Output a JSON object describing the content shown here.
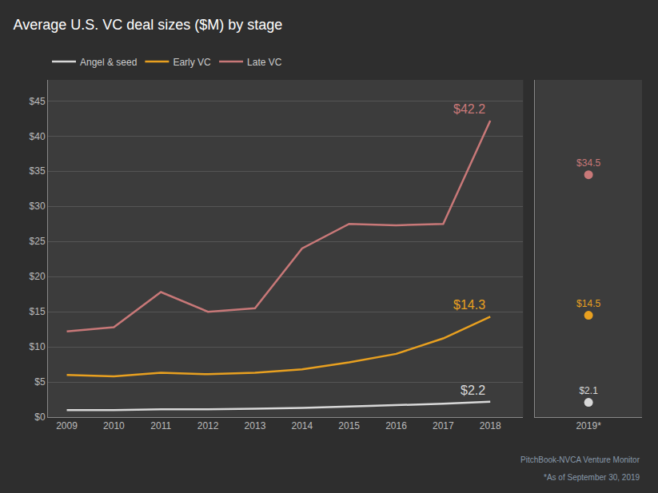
{
  "chart_data": [
    {
      "type": "line",
      "title": "Average U.S. VC deal sizes ($M) by stage",
      "x": [
        2009,
        2010,
        2011,
        2012,
        2013,
        2014,
        2015,
        2016,
        2017,
        2018
      ],
      "series": [
        {
          "name": "Angel & seed",
          "color": "#d8d8d8",
          "values": [
            1.0,
            1.0,
            1.1,
            1.1,
            1.2,
            1.3,
            1.5,
            1.7,
            1.9,
            2.2
          ]
        },
        {
          "name": "Early VC",
          "color": "#e8a020",
          "values": [
            6.0,
            5.8,
            6.3,
            6.1,
            6.3,
            6.8,
            7.8,
            9.0,
            11.2,
            14.3
          ]
        },
        {
          "name": "Late VC",
          "color": "#c87878",
          "values": [
            12.2,
            12.8,
            17.8,
            15.0,
            15.5,
            24.0,
            27.5,
            27.3,
            27.5,
            42.2
          ]
        }
      ],
      "xlim": [
        2008.6,
        2018.7
      ],
      "xticks": [
        2009,
        2010,
        2011,
        2012,
        2013,
        2014,
        2015,
        2016,
        2017,
        2018
      ],
      "ylim": [
        0,
        48
      ],
      "yticks": [
        {
          "value": 0,
          "label": "$0"
        },
        {
          "value": 5,
          "label": "$5"
        },
        {
          "value": 10,
          "label": "$10"
        },
        {
          "value": 15,
          "label": "$15"
        },
        {
          "value": 20,
          "label": "$20"
        },
        {
          "value": 25,
          "label": "$25"
        },
        {
          "value": 30,
          "label": "$30"
        },
        {
          "value": 35,
          "label": "$35"
        },
        {
          "value": 40,
          "label": "$40"
        },
        {
          "value": 45,
          "label": "$45"
        }
      ],
      "grid": true,
      "legend": "top left",
      "annotations": [
        {
          "text": "$42.2",
          "x": 2018,
          "y": 42.2,
          "color": "#c87878"
        },
        {
          "text": "$14.3",
          "x": 2018,
          "y": 14.3,
          "color": "#e8a020"
        },
        {
          "text": "$2.2",
          "x": 2018,
          "y": 2.2,
          "color": "#d8d8d8"
        },
        {
          "text": "PitchBook-NVCA Venture Monitor"
        },
        {
          "text": "*As of September 30, 2019"
        }
      ]
    },
    {
      "type": "scatter",
      "categories": [
        "2019*"
      ],
      "series": [
        {
          "name": "Late VC",
          "color": "#c87878",
          "values": [
            34.5
          ],
          "value_labels": [
            "$34.5"
          ]
        },
        {
          "name": "Early VC",
          "color": "#e8a020",
          "values": [
            14.5
          ],
          "value_labels": [
            "$14.5"
          ]
        },
        {
          "name": "Angel & seed",
          "color": "#d8d8d8",
          "values": [
            2.1
          ],
          "value_labels": [
            "$2.1"
          ]
        }
      ],
      "ylim": [
        0,
        48
      ],
      "data_labels": true,
      "tick_labels": "x",
      "grid": false
    }
  ]
}
